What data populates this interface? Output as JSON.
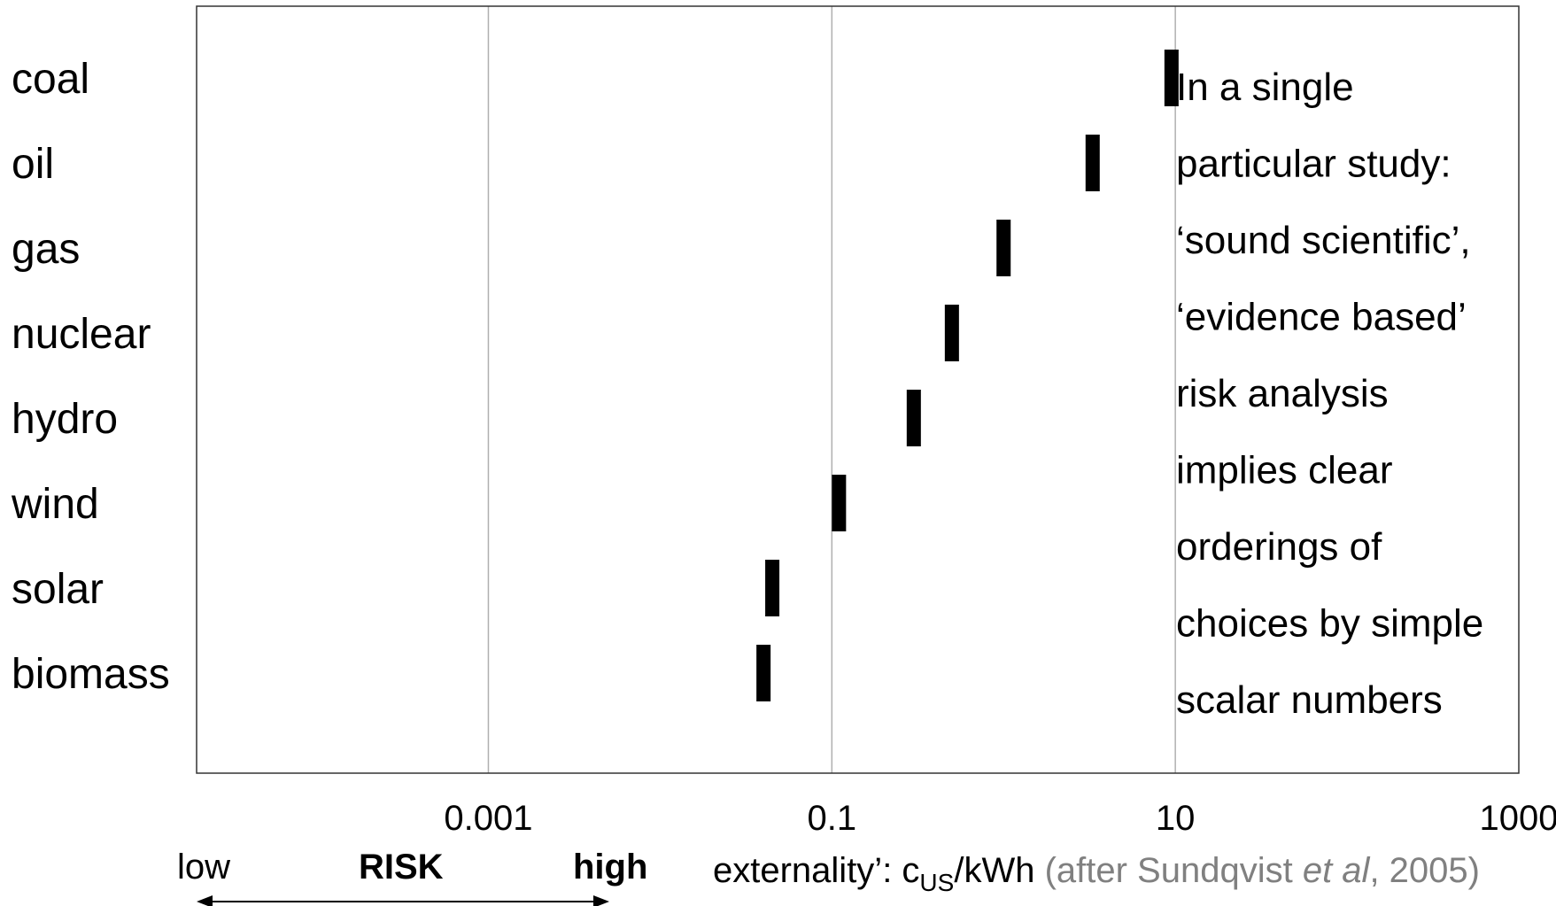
{
  "chart_data": {
    "type": "scatter",
    "categories": [
      "coal",
      "oil",
      "gas",
      "nuclear",
      "hydro",
      "wind",
      "solar",
      "biomass"
    ],
    "values": [
      9.5,
      3.3,
      1.0,
      0.5,
      0.3,
      0.11,
      0.045,
      0.04
    ],
    "x_scale": "log",
    "xlim": [
      2e-05,
      1000
    ],
    "x_ticks": [
      "0.001",
      "0.1",
      "10",
      "1000"
    ],
    "x_tick_values": [
      0.001,
      0.1,
      10,
      1000
    ],
    "grid": true,
    "note_lines": [
      "In a single",
      "particular study:",
      "‘sound scientific’,",
      "‘evidence based’",
      "risk analysis",
      "implies clear",
      "orderings of",
      "choices by simple",
      "scalar numbers"
    ],
    "xlabel": {
      "main": "externality’: c",
      "sub": "US",
      "unit": "/kWh",
      "source_prefix": " (after Sundqvist ",
      "source_italic": "et al",
      "source_suffix": ", 2005)"
    },
    "risk": {
      "low": "low",
      "label": "RISK",
      "high": "high"
    },
    "colors": {
      "bar": "#000000",
      "grid": "#b0b0b0",
      "frame": "#333333",
      "source": "#808080"
    }
  }
}
